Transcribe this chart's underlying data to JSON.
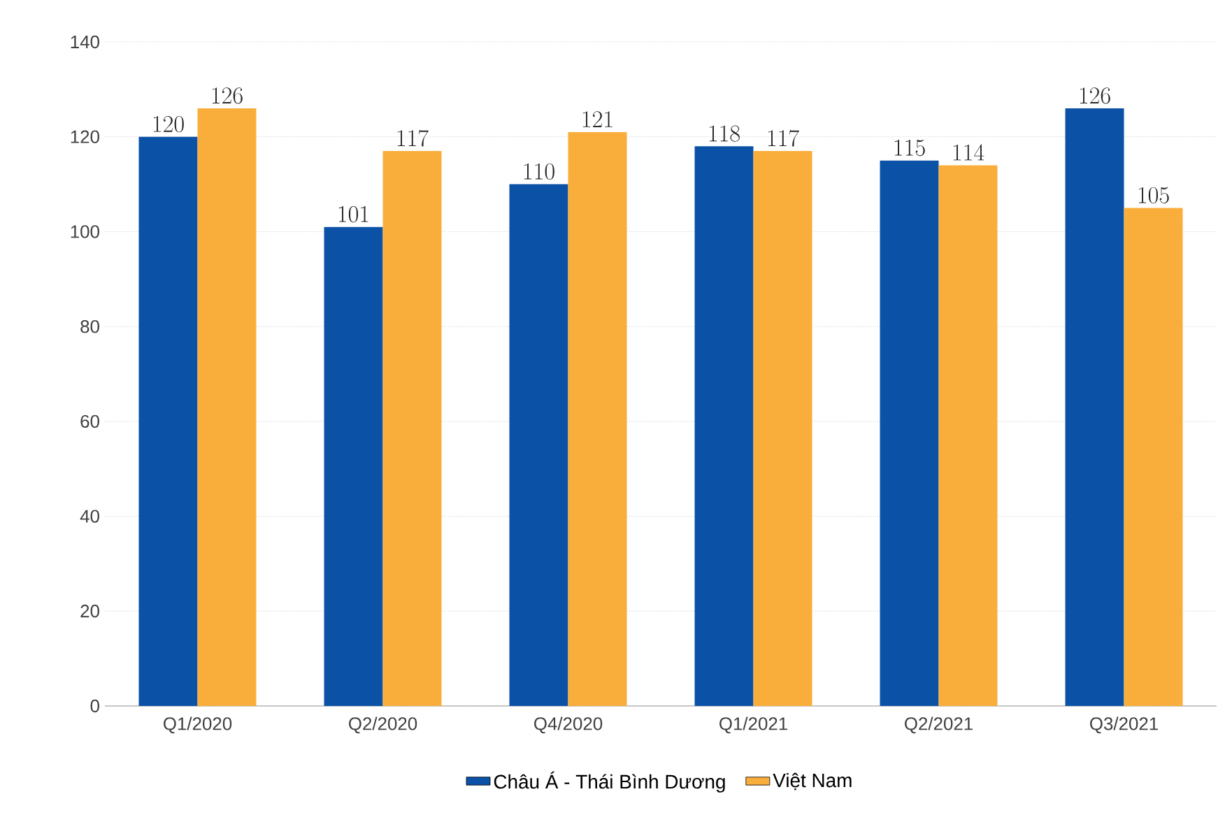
{
  "chart_data": {
    "type": "bar",
    "categories": [
      "Q1/2020",
      "Q2/2020",
      "Q4/2020",
      "Q1/2021",
      "Q2/2021",
      "Q3/2021"
    ],
    "series": [
      {
        "name": "Châu Á - Thái Bình Dương",
        "color": "#0b52a6",
        "values": [
          120,
          101,
          110,
          118,
          115,
          126
        ]
      },
      {
        "name": "Việt Nam",
        "color": "#f9ae3c",
        "values": [
          126,
          117,
          121,
          117,
          114,
          105
        ]
      }
    ],
    "ylim": [
      0,
      140
    ],
    "yticks": [
      0,
      20,
      40,
      60,
      80,
      100,
      120,
      140
    ],
    "grid": "y",
    "legend": "bottom",
    "data_labels": true
  }
}
